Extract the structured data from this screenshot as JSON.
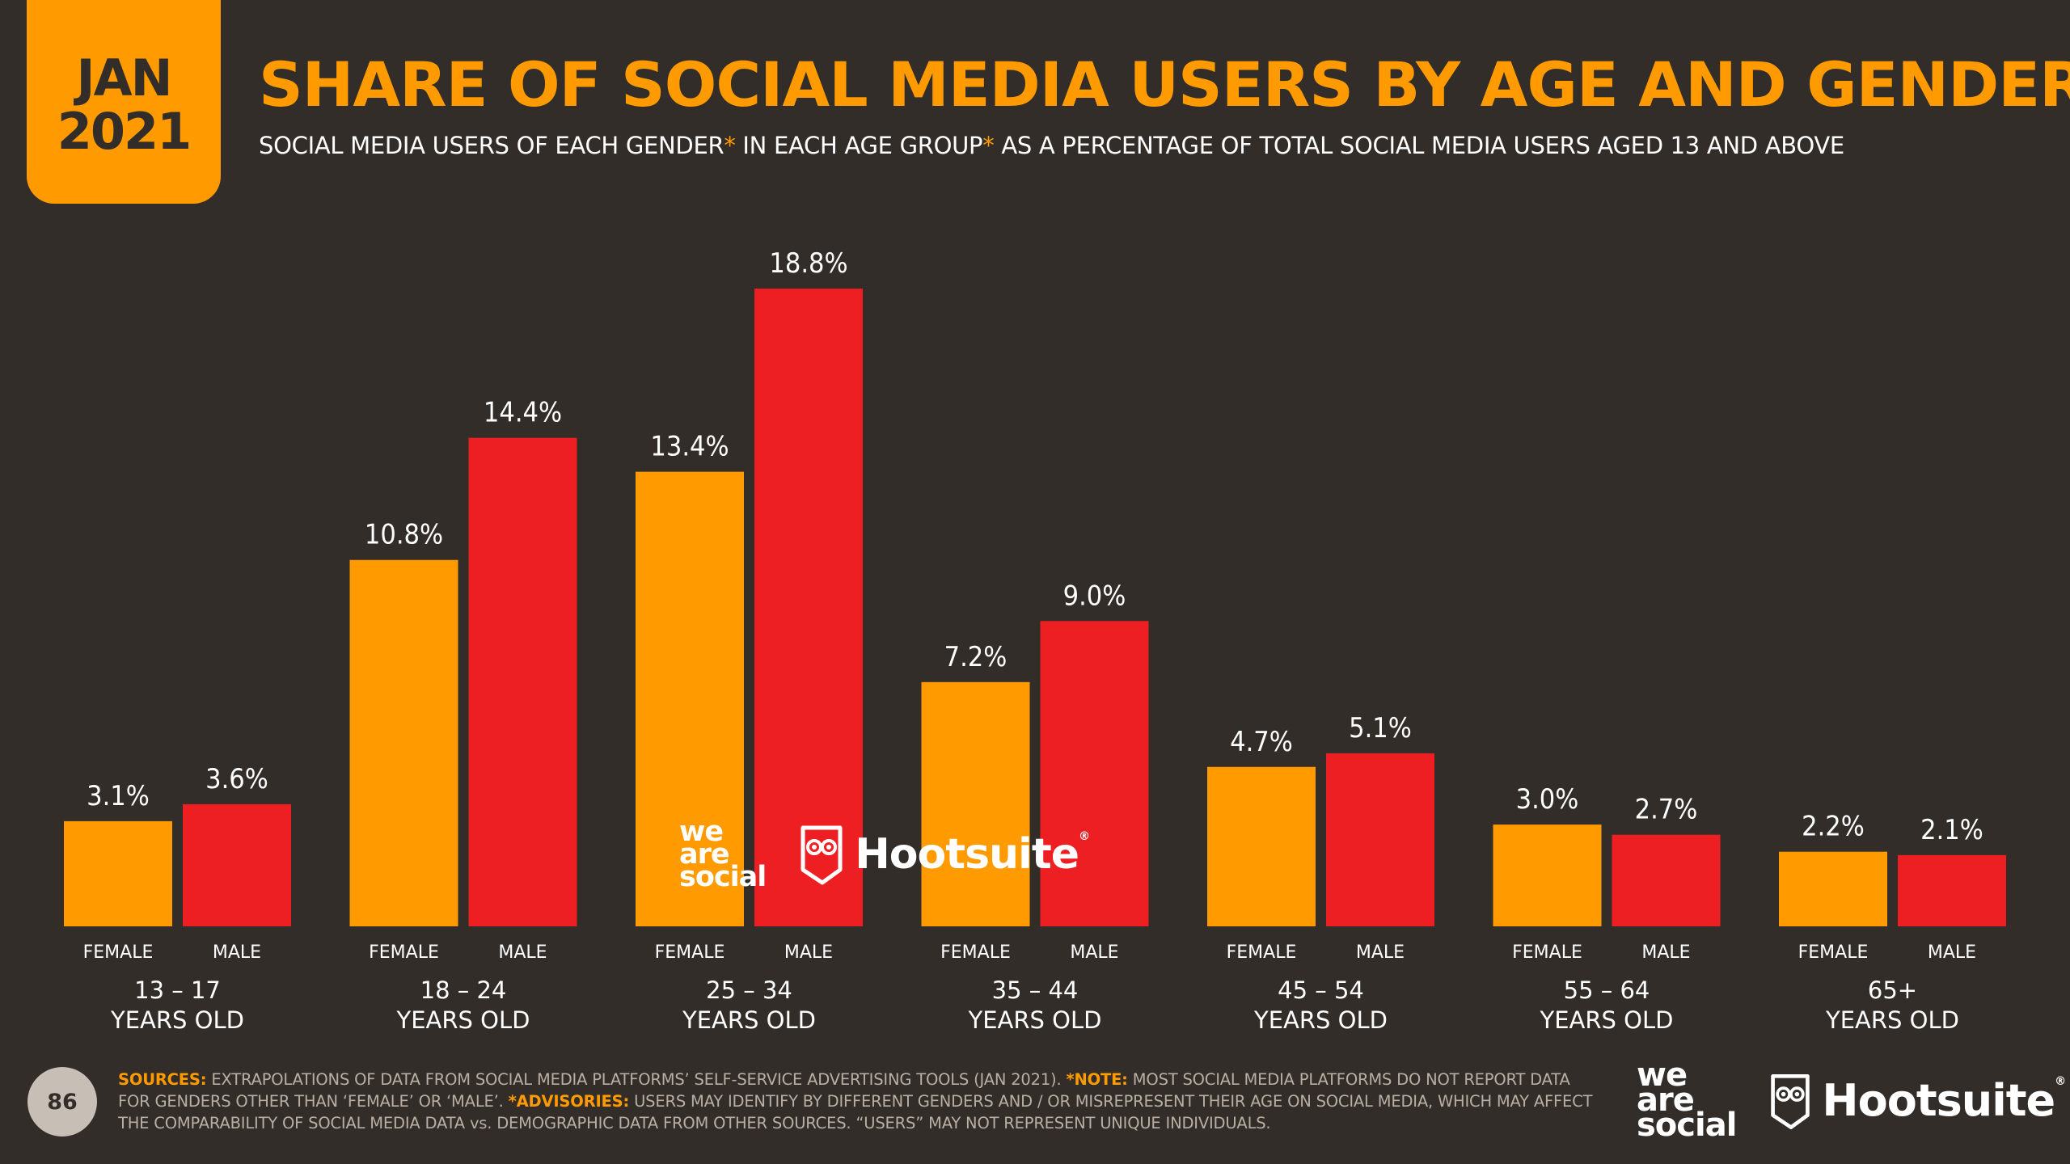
{
  "header": {
    "date_month": "JAN",
    "date_year": "2021",
    "title": "SHARE OF SOCIAL MEDIA USERS BY AGE AND GENDER",
    "subtitle_part1": "SOCIAL MEDIA USERS OF EACH GENDER",
    "subtitle_part2": " IN EACH AGE GROUP",
    "subtitle_part3": " AS A PERCENTAGE OF TOTAL SOCIAL MEDIA USERS AGED 13 AND ABOVE",
    "asterisk": "*"
  },
  "colors": {
    "female": "#ff9a00",
    "male": "#ee1f23",
    "background": "#332d29"
  },
  "chart_data": {
    "type": "bar",
    "categories": [
      "13 – 17",
      "18 – 24",
      "25 – 34",
      "35 – 44",
      "45 – 54",
      "55 – 64",
      "65+"
    ],
    "category_suffix": "YEARS OLD",
    "series": [
      {
        "name": "FEMALE",
        "values": [
          3.1,
          10.8,
          13.4,
          7.2,
          4.7,
          3.0,
          2.2
        ],
        "labels": [
          "3.1%",
          "10.8%",
          "13.4%",
          "7.2%",
          "4.7%",
          "3.0%",
          "2.2%"
        ]
      },
      {
        "name": "MALE",
        "values": [
          3.6,
          14.4,
          18.8,
          9.0,
          5.1,
          2.7,
          2.1
        ],
        "labels": [
          "3.6%",
          "14.4%",
          "18.8%",
          "9.0%",
          "5.1%",
          "2.7%",
          "2.1%"
        ]
      }
    ],
    "ylim": [
      0,
      18.8
    ],
    "grid": false,
    "legend": "none"
  },
  "logos": {
    "we_are_social": [
      "we",
      "are",
      "social"
    ],
    "hootsuite": "Hootsuite",
    "registered": "®"
  },
  "footer": {
    "page_number": "86",
    "sources_label": "SOURCES:",
    "sources_text": " EXTRAPOLATIONS OF DATA FROM SOCIAL MEDIA PLATFORMS’ SELF-SERVICE ADVERTISING TOOLS (JAN 2021). ",
    "note_label": "*NOTE:",
    "note_text": " MOST SOCIAL MEDIA PLATFORMS DO NOT REPORT DATA FOR GENDERS OTHER THAN ‘FEMALE’ OR ‘MALE’. ",
    "advisories_label": "*ADVISORIES:",
    "advisories_text": " USERS MAY IDENTIFY BY DIFFERENT GENDERS AND / OR MISREPRESENT THEIR AGE ON SOCIAL MEDIA, WHICH MAY AFFECT THE COMPARABILITY OF SOCIAL MEDIA DATA vs. DEMOGRAPHIC DATA FROM OTHER SOURCES. “USERS” MAY NOT REPRESENT UNIQUE INDIVIDUALS."
  }
}
